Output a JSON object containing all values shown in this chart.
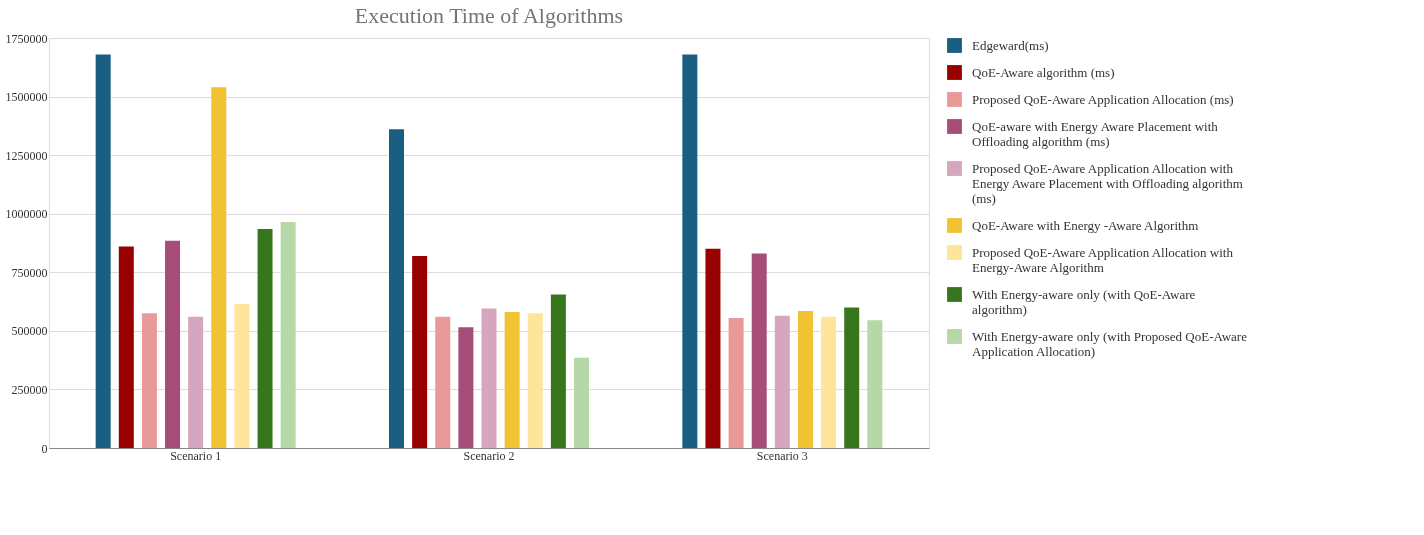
{
  "chart_data": {
    "type": "bar",
    "title": "Execution Time of Algorithms",
    "categories": [
      "Scenario 1",
      "Scenario 2",
      "Scenario 3"
    ],
    "series": [
      {
        "name": "Edgeward(ms)",
        "color": "#1a5e82",
        "values": [
          1680000,
          1360000,
          1680000
        ]
      },
      {
        "name": "QoE-Aware algorithm (ms)",
        "color": "#990000",
        "values": [
          860000,
          820000,
          850000
        ]
      },
      {
        "name": "Proposed QoE-Aware Application Allocation (ms)",
        "color": "#ea9999",
        "values": [
          575000,
          560000,
          555000
        ]
      },
      {
        "name": "QoE-aware with Energy Aware Placement with Offloading algorithm (ms)",
        "color": "#a64d79",
        "values": [
          885000,
          515000,
          830000
        ]
      },
      {
        "name": "Proposed QoE-Aware Application Allocation with Energy Aware Placement with Offloading algorithm (ms)",
        "color": "#d5a6bd",
        "values": [
          560000,
          595000,
          565000
        ]
      },
      {
        "name": "QoE-Aware with Energy -Aware Algorithm",
        "color": "#f1c232",
        "values": [
          1540000,
          580000,
          585000
        ]
      },
      {
        "name": "Proposed QoE-Aware Application Allocation with Energy-Aware Algorithm",
        "color": "#ffe599",
        "values": [
          615000,
          575000,
          560000
        ]
      },
      {
        "name": "With Energy-aware only (with QoE-Aware algorithm)",
        "color": "#38761d",
        "values": [
          935000,
          655000,
          600000
        ]
      },
      {
        "name": "With Energy-aware only (with Proposed QoE-Aware Application Allocation)",
        "color": "#b6d7a8",
        "values": [
          965000,
          385000,
          545000
        ]
      }
    ],
    "ylim": [
      0,
      1750000
    ],
    "yticks": [
      0,
      250000,
      500000,
      750000,
      1000000,
      1250000,
      1500000,
      1750000
    ],
    "grid": "y",
    "legend": "right"
  }
}
